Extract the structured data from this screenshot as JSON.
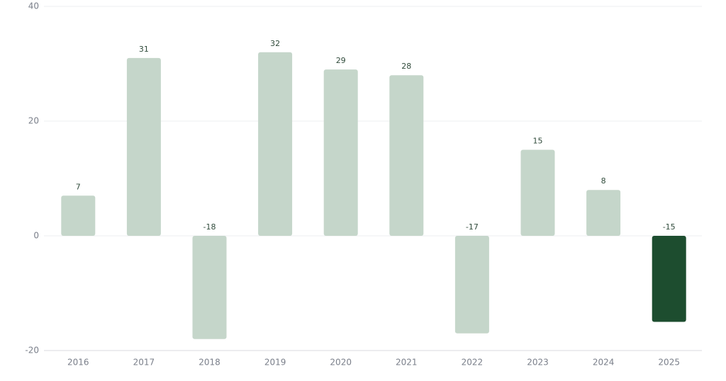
{
  "chart_data": {
    "type": "bar",
    "categories": [
      "2016",
      "2017",
      "2018",
      "2019",
      "2020",
      "2021",
      "2022",
      "2023",
      "2024",
      "2025"
    ],
    "values": [
      7,
      31,
      -18,
      32,
      29,
      28,
      -17,
      15,
      8,
      -15
    ],
    "colors": [
      "#c5d6ca",
      "#c5d6ca",
      "#c5d6ca",
      "#c5d6ca",
      "#c5d6ca",
      "#c5d6ca",
      "#c5d6ca",
      "#c5d6ca",
      "#c5d6ca",
      "#1d4d2f"
    ],
    "ylim": [
      -20,
      40
    ],
    "yticks": [
      -20,
      0,
      20,
      40
    ],
    "grid": true
  }
}
